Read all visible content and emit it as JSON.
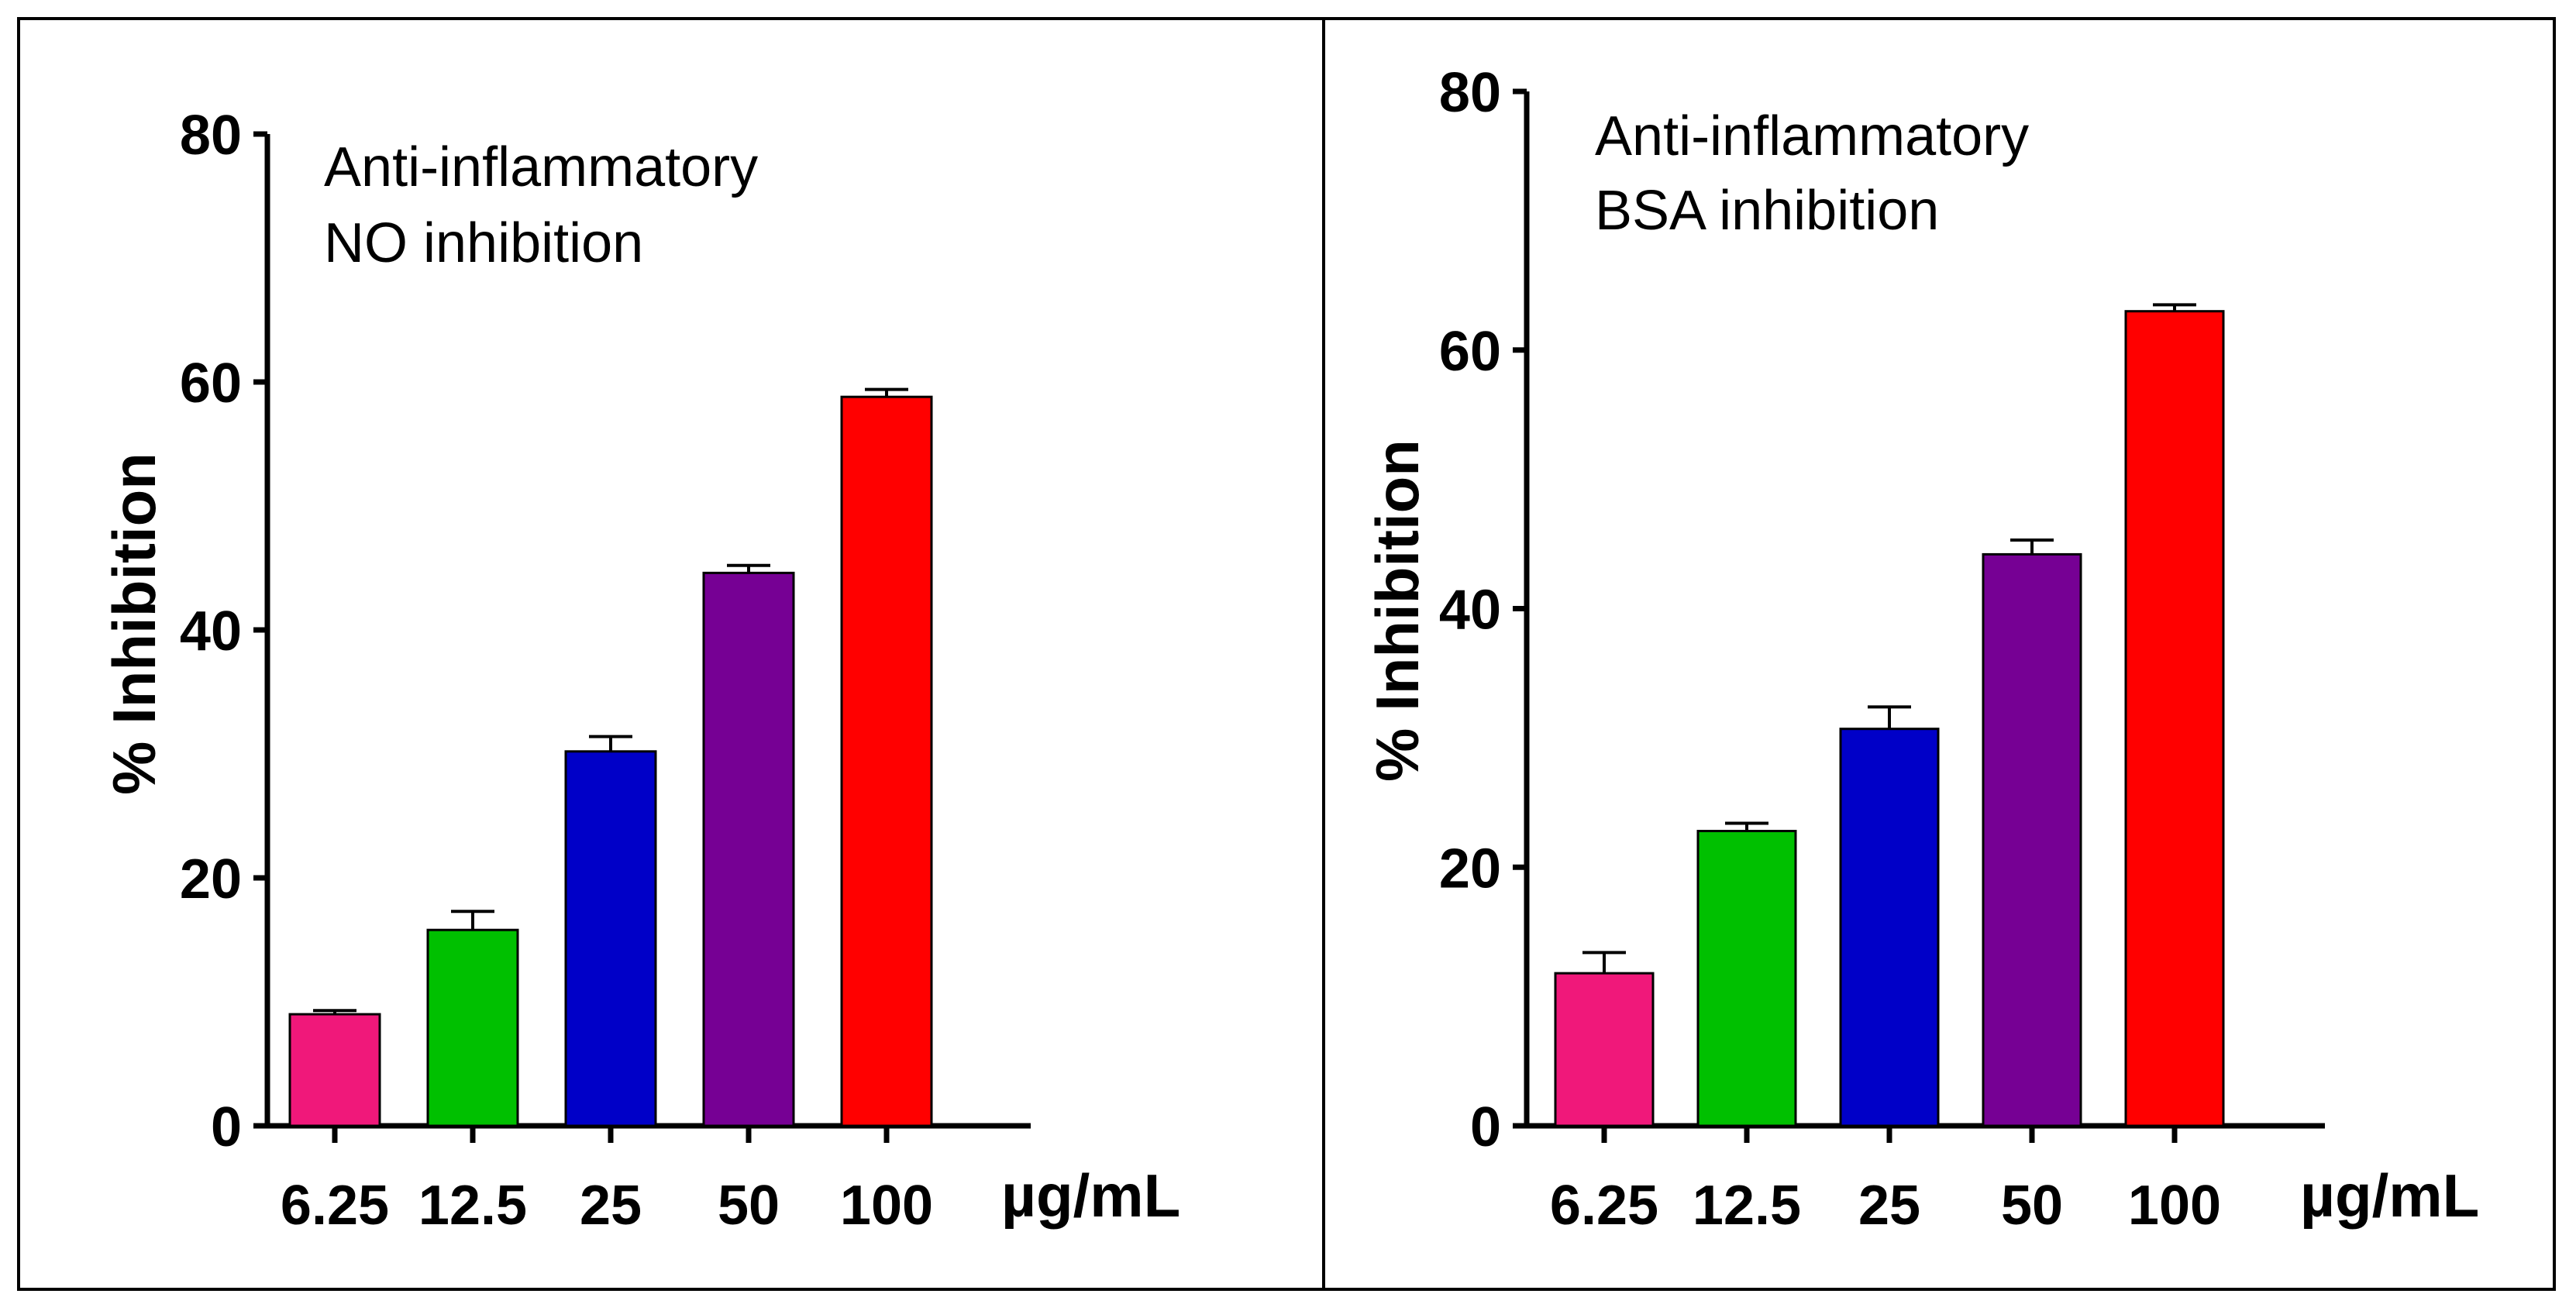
{
  "chart_data": [
    {
      "type": "bar",
      "annotation": [
        "Anti-inflammatory",
        "NO inhibition"
      ],
      "ylabel": "% Inhibition",
      "xunit": "µg/mL",
      "ylim": [
        0,
        80
      ],
      "yticks": [
        0,
        20,
        40,
        60,
        80
      ],
      "categories": [
        "6.25",
        "12.5",
        "25",
        "50",
        "100"
      ],
      "values": [
        9.0,
        15.8,
        30.2,
        44.6,
        58.8
      ],
      "errors": [
        0.3,
        1.5,
        1.2,
        0.6,
        0.6
      ],
      "colors": [
        "#f0187a",
        "#00c000",
        "#0000c8",
        "#760094",
        "#ff0000"
      ],
      "grid": false
    },
    {
      "type": "bar",
      "annotation": [
        "Anti-inflammatory",
        "BSA inhibition"
      ],
      "ylabel": "% Inhibition",
      "xunit": "µg/mL",
      "ylim": [
        0,
        80
      ],
      "yticks": [
        0,
        20,
        40,
        60,
        80
      ],
      "categories": [
        "6.25",
        "12.5",
        "25",
        "50",
        "100"
      ],
      "values": [
        11.8,
        22.8,
        30.7,
        44.2,
        63.0
      ],
      "errors": [
        1.6,
        0.6,
        1.7,
        1.1,
        0.5
      ],
      "colors": [
        "#f0187a",
        "#00c000",
        "#0000c8",
        "#760094",
        "#ff0000"
      ],
      "grid": false
    }
  ]
}
